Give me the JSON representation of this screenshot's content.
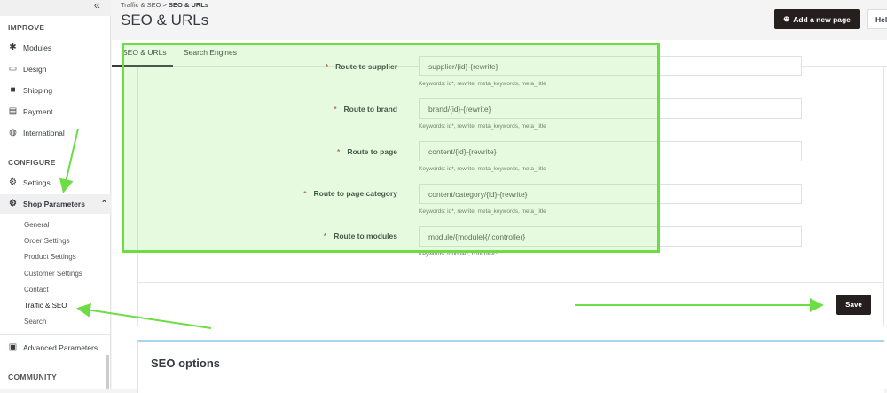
{
  "sidebar": {
    "collapse_icon": "«",
    "improve": "IMPROVE",
    "modules": "Modules",
    "design": "Design",
    "shipping": "Shipping",
    "payment": "Payment",
    "international": "International",
    "configure": "CONFIGURE",
    "settings": "Settings",
    "shop_parameters": "Shop Parameters",
    "sub": [
      "General",
      "Order Settings",
      "Product Settings",
      "Customer Settings",
      "Contact",
      "Traffic & SEO",
      "Search"
    ],
    "advanced": "Advanced Parameters",
    "community": "COMMUNITY"
  },
  "header": {
    "breadcrumb_parent": "Traffic & SEO",
    "breadcrumb_sep": ">",
    "breadcrumb_current": "SEO & URLs",
    "title": "SEO & URLs",
    "add_page": "Add a new page",
    "help": "Help"
  },
  "tabs": [
    "SEO & URLs",
    "Search Engines"
  ],
  "routes": [
    {
      "label": "Route to supplier",
      "value": "supplier/{id}-{rewrite}",
      "keywords": "Keywords: id*, rewrite, meta_keywords, meta_title"
    },
    {
      "label": "Route to brand",
      "value": "brand/{id}-{rewrite}",
      "keywords": "Keywords: id*, rewrite, meta_keywords, meta_title"
    },
    {
      "label": "Route to page",
      "value": "content/{id}-{rewrite}",
      "keywords": "Keywords: id*, rewrite, meta_keywords, meta_title"
    },
    {
      "label": "Route to page category",
      "value": "content/category/{id}-{rewrite}",
      "keywords": "Keywords: id*, rewrite, meta_keywords, meta_title"
    },
    {
      "label": "Route to modules",
      "value": "module/{module}{/:controller}",
      "keywords": "Keywords: module*, controller*"
    }
  ],
  "required_mark": "*",
  "save": "Save",
  "seo_options": "SEO options",
  "colors": {
    "highlight": "#6ddd45",
    "button": "#25201e"
  }
}
